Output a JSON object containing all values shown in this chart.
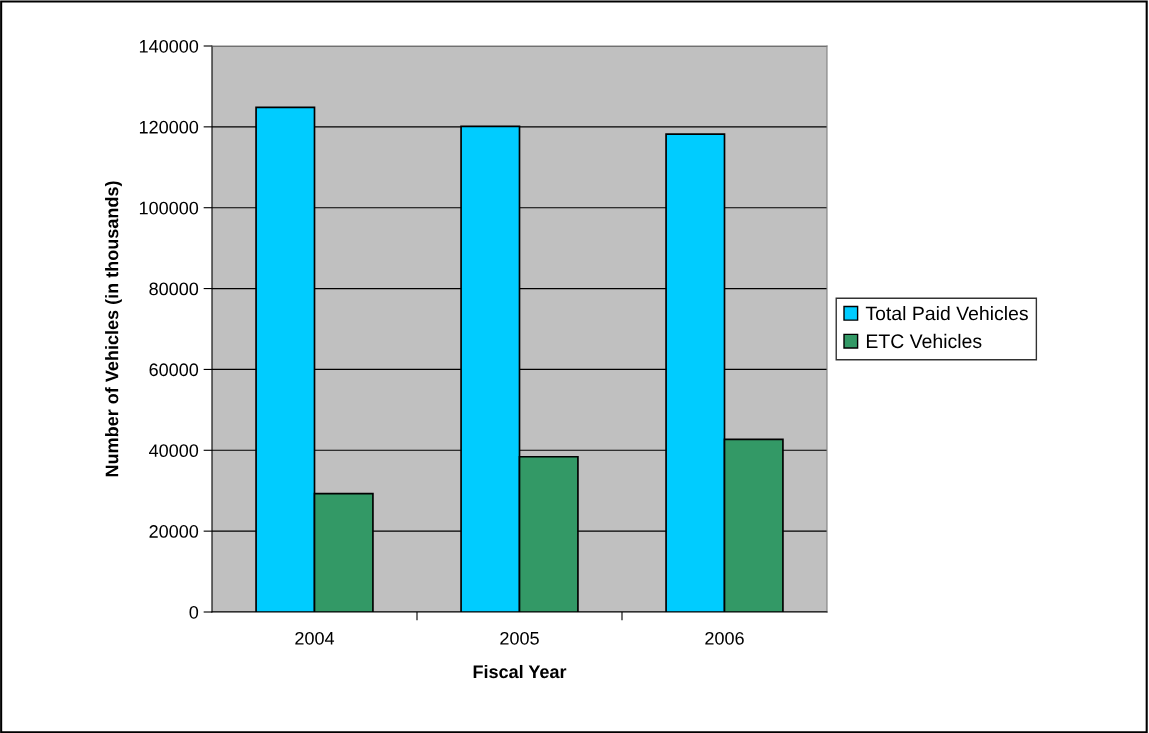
{
  "chart_data": {
    "type": "bar",
    "xlabel": "Fiscal Year",
    "ylabel": "Number of Vehicles (in thousands)",
    "categories": [
      "2004",
      "2005",
      "2006"
    ],
    "series": [
      {
        "name": "Total Paid Vehicles",
        "color": "#00ccff",
        "values": [
          124800,
          120100,
          118200
        ]
      },
      {
        "name": "ETC Vehicles",
        "color": "#339966",
        "values": [
          29300,
          38400,
          42700
        ]
      }
    ],
    "ylim": [
      0,
      140000
    ],
    "yticks": [
      0,
      20000,
      40000,
      60000,
      80000,
      100000,
      120000,
      140000
    ],
    "grid": "y",
    "legend": "right"
  }
}
